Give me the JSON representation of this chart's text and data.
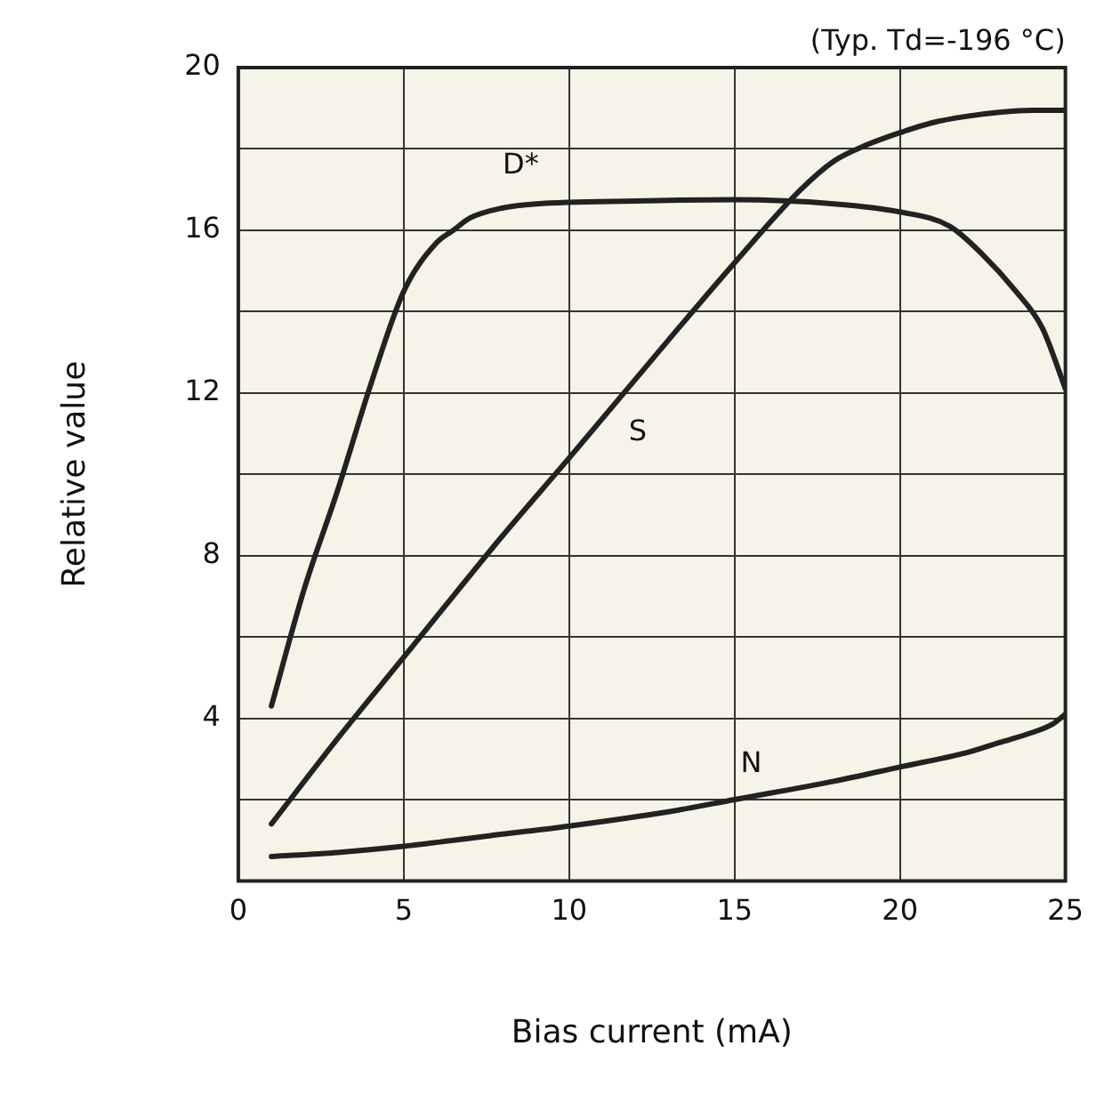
{
  "chart_data": {
    "type": "line",
    "xlabel": "Bias current (mA)",
    "ylabel": "Relative value",
    "xlim": [
      0,
      25
    ],
    "xticks": [
      0,
      5,
      10,
      15,
      20,
      25
    ],
    "ylim": [
      0,
      20
    ],
    "yticks": [
      {
        "value": 0,
        "label": null
      },
      {
        "value": 2,
        "label": null
      },
      4,
      {
        "value": 6,
        "label": null
      },
      8,
      {
        "value": 10,
        "label": null
      },
      12,
      {
        "value": 14,
        "label": null
      },
      16,
      {
        "value": 18,
        "label": null
      },
      20
    ],
    "grid": true,
    "marker": "none",
    "line_style": "solid",
    "series": [
      {
        "name": "D*",
        "color": "#222222",
        "x": [
          1,
          2,
          3,
          4,
          5,
          6,
          6.5,
          7,
          8,
          9,
          12,
          15,
          18,
          20,
          21.5,
          22.5,
          23.5,
          24.3,
          25
        ],
        "values": [
          4.3,
          7.2,
          9.6,
          12.2,
          14.5,
          15.7,
          16.0,
          16.3,
          16.55,
          16.65,
          16.72,
          16.75,
          16.65,
          16.45,
          16.1,
          15.4,
          14.5,
          13.6,
          12.1
        ]
      },
      {
        "name": "S",
        "color": "#222222",
        "x": [
          1,
          3,
          5,
          8,
          10,
          13,
          15,
          17,
          18,
          19,
          20,
          21,
          22,
          23,
          24,
          25
        ],
        "values": [
          1.4,
          3.5,
          5.5,
          8.5,
          10.4,
          13.3,
          15.2,
          17.0,
          17.7,
          18.1,
          18.4,
          18.65,
          18.8,
          18.9,
          18.95,
          18.95
        ]
      },
      {
        "name": "N",
        "color": "#222222",
        "x": [
          1,
          3,
          5,
          8,
          10,
          13,
          15,
          18,
          20,
          22,
          23,
          24,
          24.6,
          25
        ],
        "values": [
          0.6,
          0.7,
          0.85,
          1.15,
          1.35,
          1.7,
          2.0,
          2.45,
          2.8,
          3.15,
          3.4,
          3.65,
          3.85,
          4.1
        ]
      }
    ],
    "annotations": [
      "(Typ. Td=-196 °C)"
    ]
  }
}
